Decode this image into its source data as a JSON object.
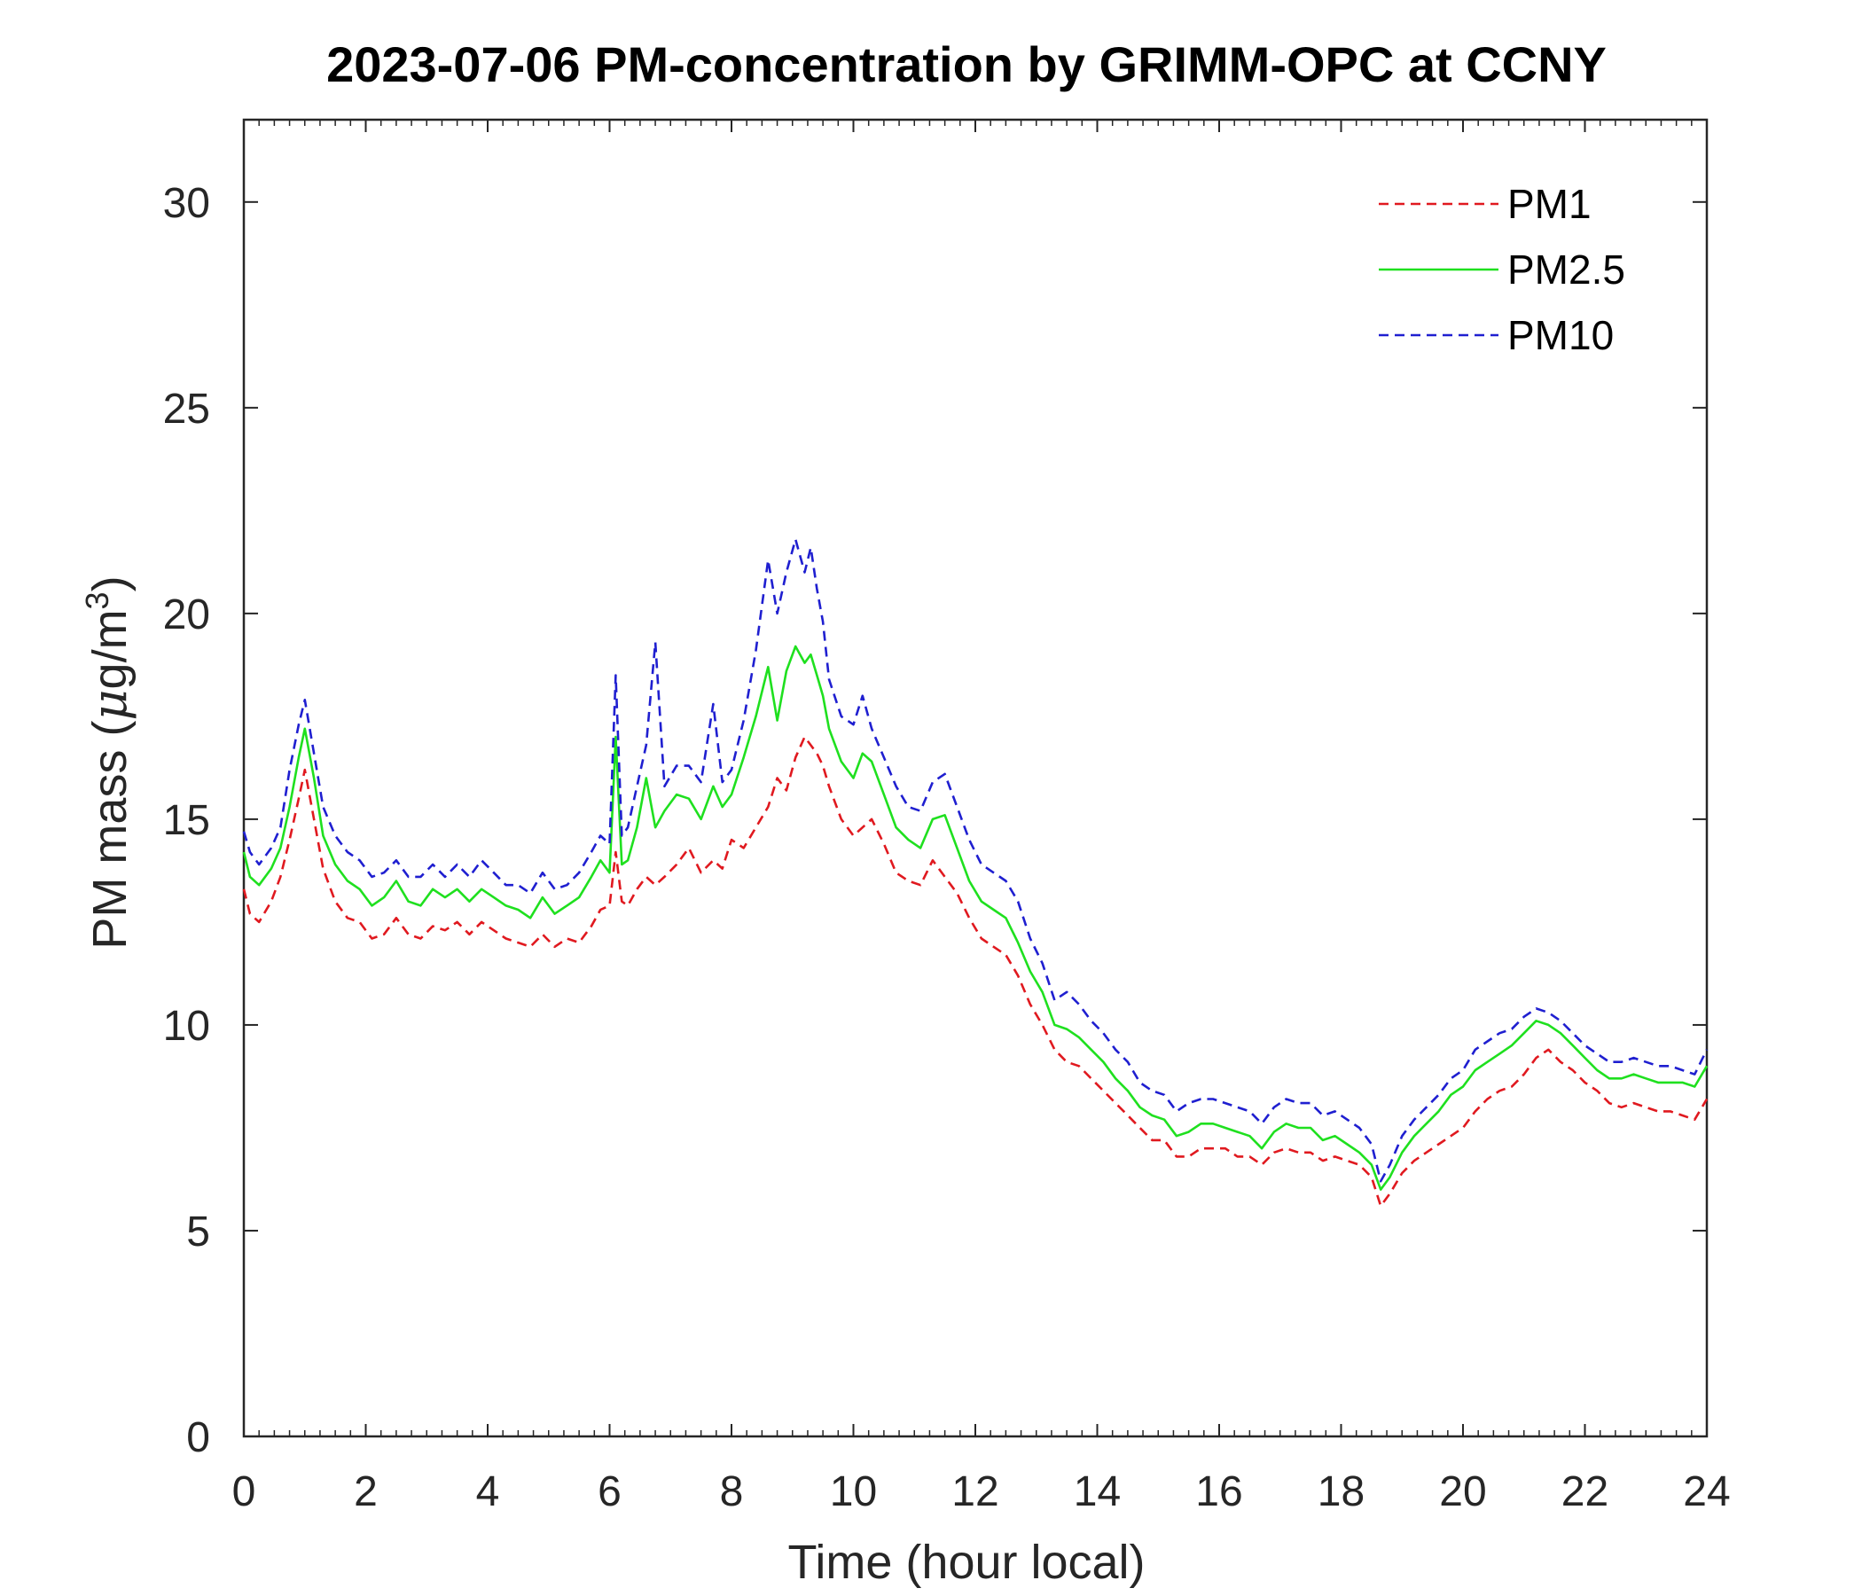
{
  "chart_data": {
    "type": "line",
    "title": "2023-07-06 PM-concentration by GRIMM-OPC at CCNY",
    "xlabel": "Time (hour local)",
    "ylabel_prefix": "PM mass (",
    "ylabel_mu": "μ",
    "ylabel_unit": "g/m",
    "ylabel_sup": "3",
    "ylabel_suffix": ")",
    "xlim": [
      0,
      24
    ],
    "ylim": [
      0,
      32
    ],
    "xticks": [
      0,
      2,
      4,
      6,
      8,
      10,
      12,
      14,
      16,
      18,
      20,
      22,
      24
    ],
    "yticks": [
      0,
      5,
      10,
      15,
      20,
      25,
      30
    ],
    "xtick_labels": [
      "0",
      "2",
      "4",
      "6",
      "8",
      "10",
      "12",
      "14",
      "16",
      "18",
      "20",
      "22",
      "24"
    ],
    "ytick_labels": [
      "0",
      "5",
      "10",
      "15",
      "20",
      "25",
      "30"
    ],
    "grid": false,
    "legend_position": "top-right",
    "series": [
      {
        "name": "PM1",
        "color": "#e0191f",
        "dash": "dashed",
        "x": [
          0,
          0.1,
          0.25,
          0.45,
          0.6,
          0.75,
          0.9,
          1.0,
          1.15,
          1.3,
          1.5,
          1.7,
          1.9,
          2.1,
          2.3,
          2.5,
          2.7,
          2.9,
          3.1,
          3.3,
          3.5,
          3.7,
          3.9,
          4.1,
          4.3,
          4.5,
          4.7,
          4.9,
          5.1,
          5.3,
          5.5,
          5.7,
          5.85,
          6.0,
          6.1,
          6.2,
          6.3,
          6.45,
          6.6,
          6.75,
          6.9,
          7.1,
          7.3,
          7.5,
          7.7,
          7.85,
          8.0,
          8.2,
          8.4,
          8.6,
          8.75,
          8.9,
          9.05,
          9.2,
          9.3,
          9.4,
          9.5,
          9.6,
          9.8,
          10.0,
          10.15,
          10.3,
          10.5,
          10.7,
          10.9,
          11.1,
          11.3,
          11.5,
          11.7,
          11.9,
          12.1,
          12.3,
          12.5,
          12.7,
          12.9,
          13.1,
          13.3,
          13.5,
          13.7,
          13.9,
          14.1,
          14.3,
          14.5,
          14.7,
          14.9,
          15.1,
          15.3,
          15.5,
          15.7,
          15.9,
          16.1,
          16.3,
          16.5,
          16.7,
          16.9,
          17.1,
          17.3,
          17.5,
          17.7,
          17.9,
          18.1,
          18.3,
          18.5,
          18.65,
          18.8,
          19.0,
          19.2,
          19.4,
          19.6,
          19.8,
          20.0,
          20.2,
          20.4,
          20.6,
          20.8,
          21.0,
          21.2,
          21.4,
          21.6,
          21.8,
          22.0,
          22.2,
          22.4,
          22.6,
          22.8,
          23.0,
          23.2,
          23.4,
          23.6,
          23.8,
          24.0
        ],
        "values": [
          13.3,
          12.7,
          12.5,
          13.0,
          13.6,
          14.5,
          15.5,
          16.2,
          15.0,
          13.8,
          13.0,
          12.6,
          12.5,
          12.1,
          12.2,
          12.6,
          12.2,
          12.1,
          12.4,
          12.3,
          12.5,
          12.2,
          12.5,
          12.3,
          12.1,
          12.0,
          11.9,
          12.2,
          11.9,
          12.1,
          12.0,
          12.4,
          12.8,
          12.9,
          14.2,
          13.0,
          12.9,
          13.3,
          13.6,
          13.4,
          13.6,
          13.9,
          14.3,
          13.7,
          14.0,
          13.8,
          14.5,
          14.3,
          14.8,
          15.3,
          16.0,
          15.7,
          16.5,
          17.0,
          16.8,
          16.6,
          16.3,
          15.8,
          15.0,
          14.6,
          14.8,
          15.0,
          14.4,
          13.7,
          13.5,
          13.4,
          14.0,
          13.6,
          13.2,
          12.6,
          12.1,
          11.9,
          11.7,
          11.2,
          10.5,
          10.0,
          9.4,
          9.1,
          9.0,
          8.7,
          8.4,
          8.1,
          7.8,
          7.5,
          7.2,
          7.2,
          6.8,
          6.8,
          7.0,
          7.0,
          7.0,
          6.8,
          6.8,
          6.6,
          6.9,
          7.0,
          6.9,
          6.9,
          6.7,
          6.8,
          6.7,
          6.6,
          6.3,
          5.6,
          5.9,
          6.4,
          6.7,
          6.9,
          7.1,
          7.3,
          7.5,
          7.9,
          8.2,
          8.4,
          8.5,
          8.8,
          9.2,
          9.4,
          9.1,
          8.9,
          8.6,
          8.4,
          8.1,
          8.0,
          8.1,
          8.0,
          7.9,
          7.9,
          7.8,
          7.7,
          8.2
        ]
      },
      {
        "name": "PM2.5",
        "color": "#1fe01f",
        "dash": "solid",
        "x": [
          0,
          0.1,
          0.25,
          0.45,
          0.6,
          0.75,
          0.9,
          1.0,
          1.15,
          1.3,
          1.5,
          1.7,
          1.9,
          2.1,
          2.3,
          2.5,
          2.7,
          2.9,
          3.1,
          3.3,
          3.5,
          3.7,
          3.9,
          4.1,
          4.3,
          4.5,
          4.7,
          4.9,
          5.1,
          5.3,
          5.5,
          5.7,
          5.85,
          6.0,
          6.1,
          6.2,
          6.3,
          6.45,
          6.6,
          6.75,
          6.9,
          7.1,
          7.3,
          7.5,
          7.7,
          7.85,
          8.0,
          8.2,
          8.4,
          8.6,
          8.75,
          8.9,
          9.05,
          9.2,
          9.3,
          9.4,
          9.5,
          9.6,
          9.8,
          10.0,
          10.15,
          10.3,
          10.5,
          10.7,
          10.9,
          11.1,
          11.3,
          11.5,
          11.7,
          11.9,
          12.1,
          12.3,
          12.5,
          12.7,
          12.9,
          13.1,
          13.3,
          13.5,
          13.7,
          13.9,
          14.1,
          14.3,
          14.5,
          14.7,
          14.9,
          15.1,
          15.3,
          15.5,
          15.7,
          15.9,
          16.1,
          16.3,
          16.5,
          16.7,
          16.9,
          17.1,
          17.3,
          17.5,
          17.7,
          17.9,
          18.1,
          18.3,
          18.5,
          18.65,
          18.8,
          19.0,
          19.2,
          19.4,
          19.6,
          19.8,
          20.0,
          20.2,
          20.4,
          20.6,
          20.8,
          21.0,
          21.2,
          21.4,
          21.6,
          21.8,
          22.0,
          22.2,
          22.4,
          22.6,
          22.8,
          23.0,
          23.2,
          23.4,
          23.6,
          23.8,
          24.0
        ],
        "values": [
          14.2,
          13.6,
          13.4,
          13.8,
          14.3,
          15.3,
          16.5,
          17.2,
          16.0,
          14.6,
          13.9,
          13.5,
          13.3,
          12.9,
          13.1,
          13.5,
          13.0,
          12.9,
          13.3,
          13.1,
          13.3,
          13.0,
          13.3,
          13.1,
          12.9,
          12.8,
          12.6,
          13.1,
          12.7,
          12.9,
          13.1,
          13.6,
          14.0,
          13.7,
          17.0,
          13.9,
          14.0,
          14.8,
          16.0,
          14.8,
          15.2,
          15.6,
          15.5,
          15.0,
          15.8,
          15.3,
          15.6,
          16.5,
          17.5,
          18.7,
          17.4,
          18.6,
          19.2,
          18.8,
          19.0,
          18.5,
          18.0,
          17.2,
          16.4,
          16.0,
          16.6,
          16.4,
          15.6,
          14.8,
          14.5,
          14.3,
          15.0,
          15.1,
          14.3,
          13.5,
          13.0,
          12.8,
          12.6,
          12.0,
          11.3,
          10.8,
          10.0,
          9.9,
          9.7,
          9.4,
          9.1,
          8.7,
          8.4,
          8.0,
          7.8,
          7.7,
          7.3,
          7.4,
          7.6,
          7.6,
          7.5,
          7.4,
          7.3,
          7.0,
          7.4,
          7.6,
          7.5,
          7.5,
          7.2,
          7.3,
          7.1,
          6.9,
          6.6,
          6.0,
          6.3,
          6.9,
          7.3,
          7.6,
          7.9,
          8.3,
          8.5,
          8.9,
          9.1,
          9.3,
          9.5,
          9.8,
          10.1,
          10.0,
          9.8,
          9.5,
          9.2,
          8.9,
          8.7,
          8.7,
          8.8,
          8.7,
          8.6,
          8.6,
          8.6,
          8.5,
          9.0
        ]
      },
      {
        "name": "PM10",
        "color": "#1f1fd0",
        "dash": "dashed",
        "x": [
          0,
          0.1,
          0.25,
          0.45,
          0.6,
          0.75,
          0.9,
          1.0,
          1.15,
          1.3,
          1.5,
          1.7,
          1.9,
          2.1,
          2.3,
          2.5,
          2.7,
          2.9,
          3.1,
          3.3,
          3.5,
          3.7,
          3.9,
          4.1,
          4.3,
          4.5,
          4.7,
          4.9,
          5.1,
          5.3,
          5.5,
          5.7,
          5.85,
          6.0,
          6.1,
          6.2,
          6.3,
          6.45,
          6.6,
          6.75,
          6.9,
          7.1,
          7.3,
          7.5,
          7.7,
          7.85,
          8.0,
          8.2,
          8.4,
          8.6,
          8.75,
          8.9,
          9.05,
          9.2,
          9.3,
          9.4,
          9.5,
          9.6,
          9.8,
          10.0,
          10.15,
          10.3,
          10.5,
          10.7,
          10.9,
          11.1,
          11.3,
          11.5,
          11.7,
          11.9,
          12.1,
          12.3,
          12.5,
          12.7,
          12.9,
          13.1,
          13.3,
          13.5,
          13.7,
          13.9,
          14.1,
          14.3,
          14.5,
          14.7,
          14.9,
          15.1,
          15.3,
          15.5,
          15.7,
          15.9,
          16.1,
          16.3,
          16.5,
          16.7,
          16.9,
          17.1,
          17.3,
          17.5,
          17.7,
          17.9,
          18.1,
          18.3,
          18.5,
          18.65,
          18.8,
          19.0,
          19.2,
          19.4,
          19.6,
          19.8,
          20.0,
          20.2,
          20.4,
          20.6,
          20.8,
          21.0,
          21.2,
          21.4,
          21.6,
          21.8,
          22.0,
          22.2,
          22.4,
          22.6,
          22.8,
          23.0,
          23.2,
          23.4,
          23.6,
          23.8,
          24.0
        ],
        "values": [
          14.7,
          14.2,
          13.9,
          14.3,
          14.8,
          16.2,
          17.3,
          17.9,
          16.6,
          15.3,
          14.6,
          14.2,
          14.0,
          13.6,
          13.7,
          14.0,
          13.6,
          13.6,
          13.9,
          13.6,
          13.9,
          13.6,
          14.0,
          13.7,
          13.4,
          13.4,
          13.2,
          13.7,
          13.3,
          13.4,
          13.7,
          14.2,
          14.6,
          14.4,
          18.5,
          14.6,
          14.8,
          15.8,
          16.8,
          19.3,
          15.8,
          16.3,
          16.3,
          15.9,
          17.8,
          15.9,
          16.2,
          17.4,
          19.1,
          21.3,
          20.0,
          21.0,
          21.8,
          21.0,
          21.6,
          20.6,
          19.8,
          18.4,
          17.5,
          17.3,
          18.0,
          17.2,
          16.5,
          15.8,
          15.3,
          15.2,
          15.9,
          16.1,
          15.3,
          14.5,
          13.9,
          13.7,
          13.5,
          13.0,
          12.1,
          11.5,
          10.6,
          10.8,
          10.5,
          10.1,
          9.8,
          9.4,
          9.1,
          8.6,
          8.4,
          8.3,
          7.9,
          8.1,
          8.2,
          8.2,
          8.1,
          8.0,
          7.9,
          7.6,
          8.0,
          8.2,
          8.1,
          8.1,
          7.8,
          7.9,
          7.7,
          7.5,
          7.1,
          6.2,
          6.6,
          7.3,
          7.7,
          8.0,
          8.3,
          8.7,
          8.9,
          9.4,
          9.6,
          9.8,
          9.9,
          10.2,
          10.4,
          10.3,
          10.1,
          9.8,
          9.5,
          9.3,
          9.1,
          9.1,
          9.2,
          9.1,
          9.0,
          9.0,
          8.9,
          8.8,
          9.4
        ]
      }
    ]
  }
}
